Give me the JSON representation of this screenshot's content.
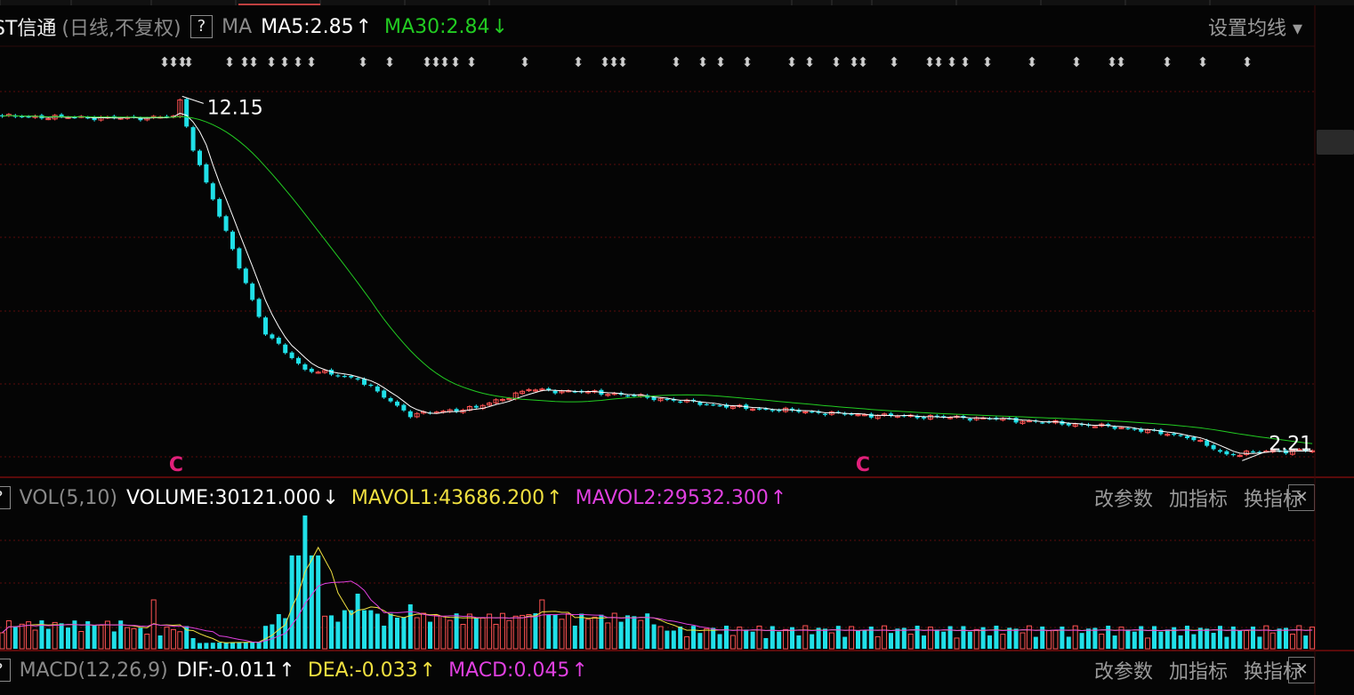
{
  "main_header": {
    "stock_name": "ST信通",
    "period": "(日线,不复权)",
    "help": "?",
    "indicator": "MA",
    "ma5": "MA5:2.85",
    "ma5_arrow": "↑",
    "ma30": "MA30:2.84",
    "ma30_arrow": "↓",
    "settings": "设置均线 ▾"
  },
  "vol_header": {
    "help": "?",
    "indicator": "VOL(5,10)",
    "volume": "VOLUME:30121.000",
    "volume_arrow": "↓",
    "mavol1": "MAVOL1:43686.200",
    "mavol1_arrow": "↑",
    "mavol2": "MAVOL2:29532.300",
    "mavol2_arrow": "↑"
  },
  "macd_header": {
    "help": "?",
    "indicator": "MACD(12,26,9)",
    "dif": "DIF:-0.011",
    "dif_arrow": "↑",
    "dea": "DEA:-0.033",
    "dea_arrow": "↑",
    "macd": "MACD:0.045",
    "macd_arrow": "↑"
  },
  "panel_buttons": [
    "改参数",
    "加指标",
    "换指标"
  ],
  "close_symbol": "✕",
  "colors": {
    "up": "#ff5252",
    "down": "#20e0e8",
    "ma5": "#ffffff",
    "ma30": "#22cc22",
    "mavol1": "#f0e040",
    "mavol2": "#e040e0",
    "marker": "#e0207a",
    "grid": "#5a0a0a"
  },
  "chart_data": {
    "type": "candlestick",
    "y_range": [
      1.8,
      12.9
    ],
    "high_label": "12.15",
    "low_label": "2.21",
    "markers": [
      "C",
      "C"
    ],
    "anchors": [
      {
        "x": 0,
        "close": 11.6
      },
      {
        "x": 20,
        "close": 11.55
      },
      {
        "x": 26,
        "close": 11.6
      },
      {
        "x": 27,
        "close": 12.0
      },
      {
        "x": 29,
        "close": 10.7
      },
      {
        "x": 40,
        "close": 5.6
      },
      {
        "x": 46,
        "close": 4.6
      },
      {
        "x": 54,
        "close": 4.35
      },
      {
        "x": 62,
        "close": 3.35
      },
      {
        "x": 72,
        "close": 3.55
      },
      {
        "x": 80,
        "close": 4.05
      },
      {
        "x": 92,
        "close": 3.95
      },
      {
        "x": 112,
        "close": 3.55
      },
      {
        "x": 130,
        "close": 3.35
      },
      {
        "x": 150,
        "close": 3.25
      },
      {
        "x": 170,
        "close": 3.0
      },
      {
        "x": 180,
        "close": 2.75
      },
      {
        "x": 186,
        "close": 2.25
      },
      {
        "x": 192,
        "close": 2.35
      },
      {
        "x": 199,
        "close": 2.36
      }
    ],
    "volume_peaks": [
      {
        "x": 23,
        "v": 55000
      },
      {
        "x": 46,
        "v": 150000
      },
      {
        "x": 54,
        "v": 62000
      },
      {
        "x": 62,
        "v": 50000
      },
      {
        "x": 82,
        "v": 55000
      }
    ]
  }
}
